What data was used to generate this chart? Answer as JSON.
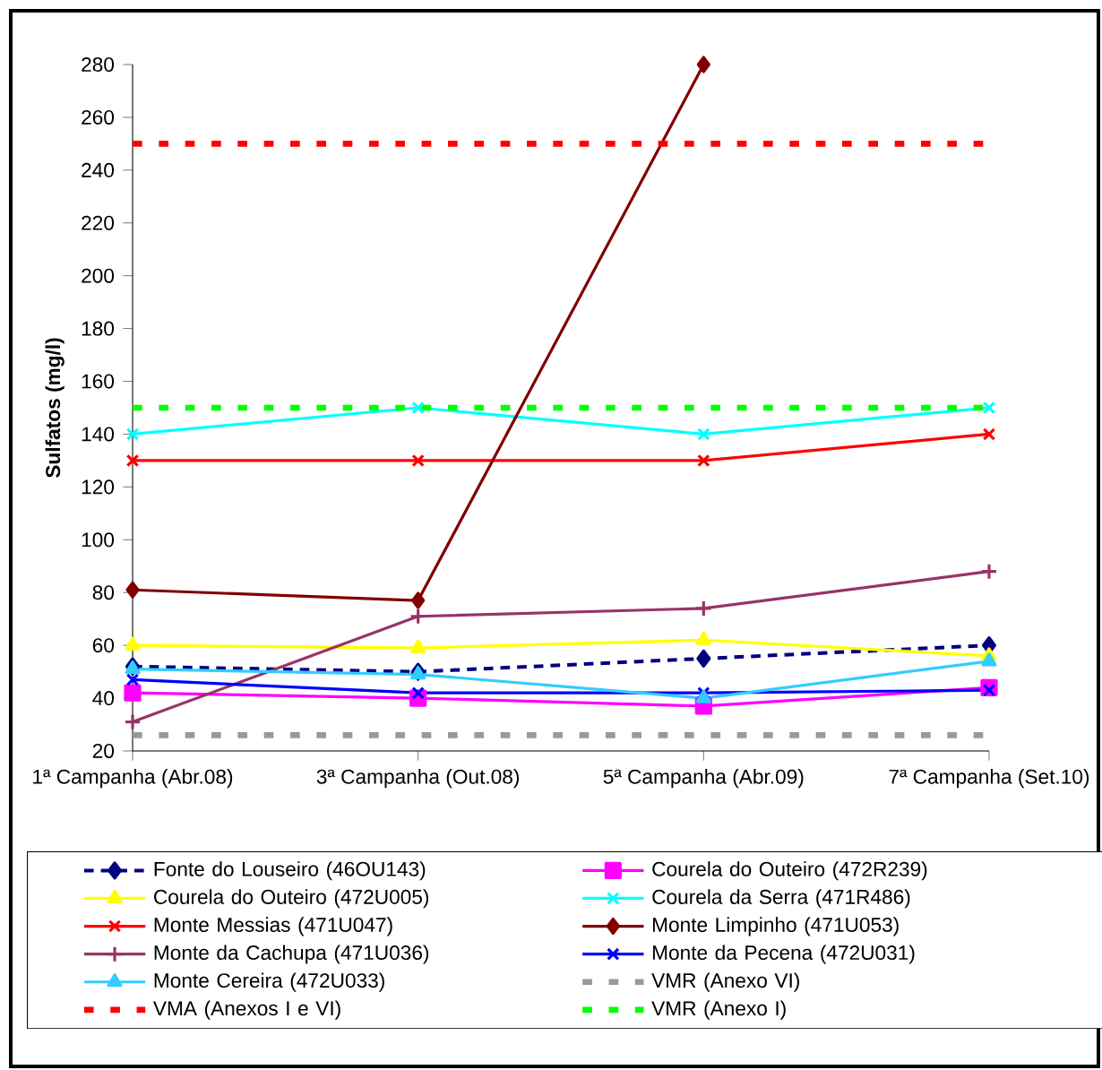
{
  "chart_data": {
    "type": "line",
    "ylabel": "Sulfatos (mg/l)",
    "categories": [
      "1ª Campanha (Abr.08)",
      "3ª Campanha (Out.08)",
      "5ª Campanha (Abr.09)",
      "7ª Campanha (Set.10)"
    ],
    "ylim": [
      20,
      280
    ],
    "yticks": [
      20,
      40,
      60,
      80,
      100,
      120,
      140,
      160,
      180,
      200,
      220,
      240,
      260,
      280
    ],
    "grid": false,
    "legend": "bottom",
    "series": [
      {
        "name": "Fonte do Louseiro (46OU143)",
        "color": "#000080",
        "marker": "diamond",
        "line_style": "dashed",
        "values": [
          52,
          50,
          55,
          60
        ]
      },
      {
        "name": "Courela do Outeiro (472R239)",
        "color": "#ff00ff",
        "marker": "square",
        "line_style": "solid",
        "values": [
          42,
          40,
          37,
          44
        ]
      },
      {
        "name": "Courela do Outeiro (472U005)",
        "color": "#ffff00",
        "marker": "triangle",
        "line_style": "solid",
        "values": [
          60,
          59,
          62,
          56
        ]
      },
      {
        "name": "Courela da Serra (471R486)",
        "color": "#00ffff",
        "marker": "cross",
        "line_style": "solid",
        "values": [
          140,
          150,
          140,
          150
        ]
      },
      {
        "name": "Monte Messias (471U047)",
        "color": "#ff0000",
        "marker": "cross",
        "line_style": "solid",
        "values": [
          130,
          130,
          130,
          140
        ]
      },
      {
        "name": "Monte Limpinho (471U053)",
        "color": "#800000",
        "marker": "diamond",
        "line_style": "solid",
        "values": [
          81,
          77,
          280,
          null
        ]
      },
      {
        "name": "Monte da Cachupa (471U036)",
        "color": "#993366",
        "marker": "plus",
        "line_style": "solid",
        "values": [
          31,
          71,
          74,
          88
        ]
      },
      {
        "name": "Monte da Pecena (472U031)",
        "color": "#0000ff",
        "marker": "cross",
        "line_style": "solid",
        "values": [
          47,
          42,
          42,
          43
        ]
      },
      {
        "name": "Monte Cereira (472U033)",
        "color": "#33ccff",
        "marker": "triangle",
        "line_style": "solid",
        "values": [
          51,
          49,
          40,
          54
        ]
      },
      {
        "name": "VMR (Anexo VI)",
        "color": "#999999",
        "marker": "none",
        "line_style": "dashed",
        "values": [
          26,
          26,
          26,
          26
        ]
      },
      {
        "name": "VMA (Anexos I e VI)",
        "color": "#ff0000",
        "marker": "none",
        "line_style": "dashed",
        "values": [
          250,
          250,
          250,
          250
        ]
      },
      {
        "name": "VMR (Anexo I)",
        "color": "#00ff00",
        "marker": "none",
        "line_style": "dashed",
        "values": [
          150,
          150,
          150,
          150
        ]
      }
    ]
  }
}
